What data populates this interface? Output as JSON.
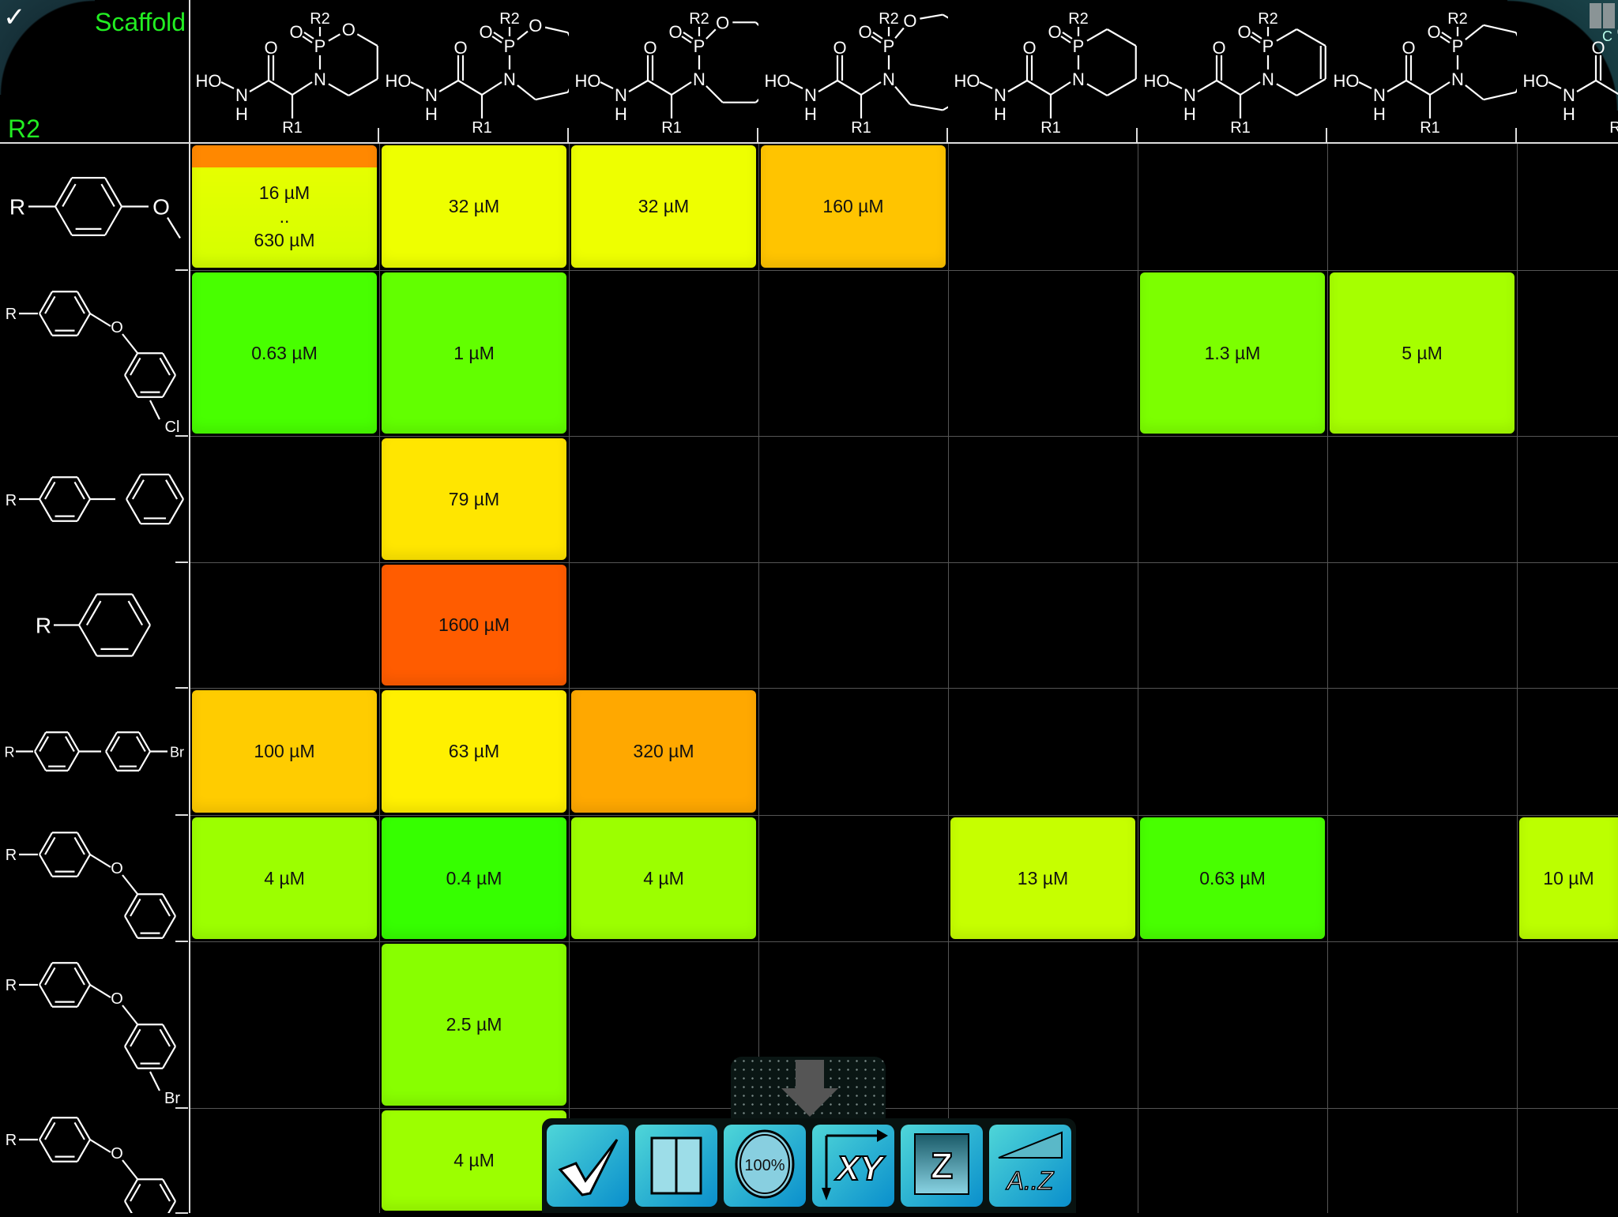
{
  "header": {
    "scaffold_label": "Scaffold",
    "r2_label": "R2",
    "corner_glyph": "C"
  },
  "atoms": {
    "ho": "HO",
    "n": "N",
    "h": "H",
    "o": "O",
    "p": "P",
    "r1": "R1",
    "r2": "R2",
    "r": "R",
    "cl": "Cl",
    "br": "Br"
  },
  "scaffolds": [
    {
      "ring_size": 6,
      "ring_oxygen": true,
      "double_bond": false
    },
    {
      "ring_size": 7,
      "ring_oxygen": true,
      "double_bond": false
    },
    {
      "ring_size": 8,
      "ring_oxygen": true,
      "double_bond": false
    },
    {
      "ring_size": 9,
      "ring_oxygen": true,
      "double_bond": false
    },
    {
      "ring_size": 6,
      "ring_oxygen": false,
      "double_bond": false
    },
    {
      "ring_size": 6,
      "ring_oxygen": false,
      "double_bond": true
    },
    {
      "ring_size": 7,
      "ring_oxygen": false,
      "double_bond": false
    },
    {
      "ring_size": 7,
      "ring_oxygen": false,
      "double_bond": false
    }
  ],
  "r2_groups": [
    {
      "type": "methoxyphenyl"
    },
    {
      "type": "halophenoxyphenyl",
      "halogen": "Cl"
    },
    {
      "type": "biphenyl"
    },
    {
      "type": "phenyl"
    },
    {
      "type": "bromobiphenyl"
    },
    {
      "type": "phenoxyphenyl"
    },
    {
      "type": "halophenoxyphenyl",
      "halogen": "Br"
    },
    {
      "type": "phenoxyphenyl"
    }
  ],
  "cells": [
    {
      "row": 0,
      "col": 0,
      "lines": [
        "16 µM",
        "..",
        "630 µM"
      ],
      "color": "#e6ff00",
      "top_color": "#ff8800"
    },
    {
      "row": 0,
      "col": 1,
      "lines": [
        "32 µM"
      ],
      "color": "#eeff00"
    },
    {
      "row": 0,
      "col": 2,
      "lines": [
        "32 µM"
      ],
      "color": "#eeff00"
    },
    {
      "row": 0,
      "col": 3,
      "lines": [
        "160 µM"
      ],
      "color": "#ffc400"
    },
    {
      "row": 1,
      "col": 0,
      "lines": [
        "0.63 µM"
      ],
      "color": "#48ff00"
    },
    {
      "row": 1,
      "col": 1,
      "lines": [
        "1 µM"
      ],
      "color": "#62ff00"
    },
    {
      "row": 1,
      "col": 5,
      "lines": [
        "1.3 µM"
      ],
      "color": "#7cff00"
    },
    {
      "row": 1,
      "col": 6,
      "lines": [
        "5 µM"
      ],
      "color": "#a6ff00"
    },
    {
      "row": 2,
      "col": 1,
      "lines": [
        "79 µM"
      ],
      "color": "#ffe600"
    },
    {
      "row": 3,
      "col": 1,
      "lines": [
        "1600 µM"
      ],
      "color": "#ff5c00"
    },
    {
      "row": 4,
      "col": 0,
      "lines": [
        "100 µM"
      ],
      "color": "#ffcc00"
    },
    {
      "row": 4,
      "col": 1,
      "lines": [
        "63 µM"
      ],
      "color": "#fff000"
    },
    {
      "row": 4,
      "col": 2,
      "lines": [
        "320 µM"
      ],
      "color": "#ffa800"
    },
    {
      "row": 5,
      "col": 0,
      "lines": [
        "4 µM"
      ],
      "color": "#9cff00"
    },
    {
      "row": 5,
      "col": 1,
      "lines": [
        "0.4 µM"
      ],
      "color": "#36ff00"
    },
    {
      "row": 5,
      "col": 2,
      "lines": [
        "4 µM"
      ],
      "color": "#9cff00"
    },
    {
      "row": 5,
      "col": 4,
      "lines": [
        "13 µM"
      ],
      "color": "#c6ff00"
    },
    {
      "row": 5,
      "col": 5,
      "lines": [
        "0.63 µM"
      ],
      "color": "#48ff00"
    },
    {
      "row": 5,
      "col": 7,
      "lines": [
        "10 µM"
      ],
      "color": "#bcff00"
    },
    {
      "row": 6,
      "col": 1,
      "lines": [
        "2.5 µM"
      ],
      "color": "#88ff00"
    },
    {
      "row": 7,
      "col": 1,
      "lines": [
        "4 µM"
      ],
      "color": "#9cff00"
    }
  ],
  "toolbar": [
    {
      "name": "select-all-button",
      "icon": "checkmark-icon"
    },
    {
      "name": "split-view-button",
      "icon": "split-panel-icon"
    },
    {
      "name": "zoom-100-button",
      "icon": "zoom-100-icon",
      "label": "100%"
    },
    {
      "name": "swap-axes-button",
      "icon": "xy-axes-icon",
      "label": "XY"
    },
    {
      "name": "z-value-button",
      "icon": "z-icon",
      "label": "Z"
    },
    {
      "name": "sort-button",
      "icon": "sort-az-icon",
      "label": "A..Z"
    }
  ],
  "colors": {
    "label_green": "#22ee22",
    "toolbar_start": "#4fd6d8",
    "toolbar_end": "#0a8fcc"
  }
}
